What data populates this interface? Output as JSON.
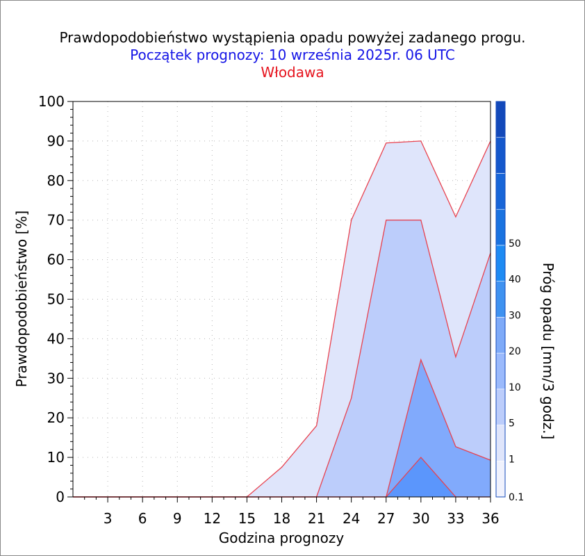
{
  "titles": {
    "main": "Prawdopodobieństwo wystąpienia opadu powyżej zadanego progu.",
    "forecast_start": "Początek prognozy: 10 września 2025r. 06 UTC",
    "location": "Włodawa"
  },
  "colors": {
    "title_main": "#000000",
    "title_forecast": "#1414e6",
    "title_location": "#e6141e",
    "threshold_line": "#e8414e"
  },
  "chart_data": {
    "type": "area",
    "xlabel": "Godzina prognozy",
    "ylabel": "Prawdopodobieństwo [%]",
    "colorbar_label": "Próg opadu [mm/3 godz.]",
    "x": [
      0,
      3,
      6,
      9,
      12,
      15,
      18,
      21,
      24,
      27,
      30,
      33,
      36
    ],
    "x_tick_labels": [
      "3",
      "6",
      "9",
      "12",
      "15",
      "18",
      "21",
      "24",
      "27",
      "30",
      "33",
      "36"
    ],
    "y_tick_labels": [
      "0",
      "10",
      "20",
      "30",
      "40",
      "50",
      "60",
      "70",
      "80",
      "90",
      "100"
    ],
    "xlim": [
      0,
      36
    ],
    "ylim": [
      0,
      100
    ],
    "grid": true,
    "series": [
      {
        "name": "0.1",
        "color": "#dfe5fb",
        "values": [
          0,
          0,
          0,
          0,
          0,
          0,
          7.5,
          18,
          70,
          89.5,
          90,
          70.8,
          90
        ]
      },
      {
        "name": "1",
        "color": "#bccdfb",
        "values": [
          0,
          0,
          0,
          0,
          0,
          0,
          0,
          0,
          25,
          70,
          70,
          35.4,
          61.7
        ]
      },
      {
        "name": "5",
        "color": "#81aafc",
        "values": [
          0,
          0,
          0,
          0,
          0,
          0,
          0,
          0,
          0,
          0,
          34.7,
          12.7,
          9.3
        ]
      },
      {
        "name": "10",
        "color": "#5b96fc",
        "values": [
          0,
          0,
          0,
          0,
          0,
          0,
          0,
          0,
          0,
          0,
          10,
          0,
          0
        ]
      }
    ],
    "colorbar": {
      "labels": [
        "0.1",
        "1",
        "5",
        "10",
        "20",
        "30",
        "40",
        "50"
      ],
      "colors": [
        "#f0f2fd",
        "#dfe5fb",
        "#bccdfb",
        "#9bbafc",
        "#7eaaf8",
        "#3f92f0",
        "#1e8bf3",
        "#1a73e0",
        "#1866d8",
        "#1558cc",
        "#1349ba"
      ]
    }
  }
}
